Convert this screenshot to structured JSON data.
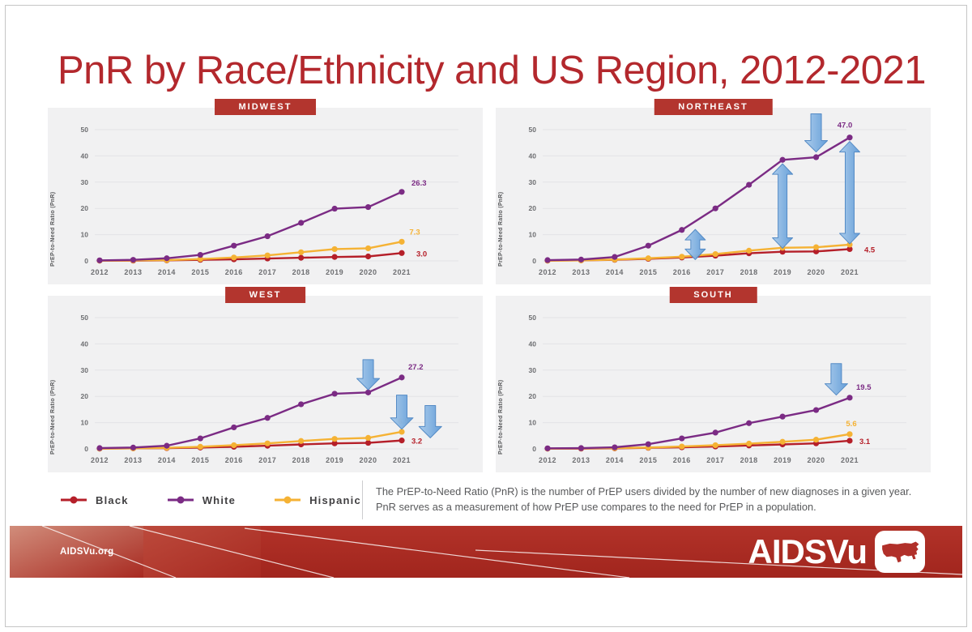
{
  "page": {
    "title": "PnR by Race/Ethnicity and US Region, 2012-2021"
  },
  "colors": {
    "accent_red": "#b3282d",
    "region_chip_bg": "#b3352e",
    "black_series": "#b51f29",
    "white_series": "#7b2b84",
    "hispanic_series": "#f5b234",
    "arrow_blue": "#6fa8dc",
    "panel_bg": "#f1f1f2",
    "footer_red": "#ab2a22"
  },
  "legend": {
    "items": [
      {
        "label": "Black",
        "color": "#b51f29"
      },
      {
        "label": "White",
        "color": "#7b2b84"
      },
      {
        "label": "Hispanic",
        "color": "#f5b234"
      }
    ]
  },
  "note": {
    "text": "The PrEP-to-Need Ratio (PnR) is the number of PrEP users divided by the number of new diagnoses in a given year. PnR serves as a measurement of how PrEP use compares to the need for PrEP in a population."
  },
  "footer": {
    "site": "AIDSVu.org",
    "brand": "AIDSVu",
    "logo_icon": "us-map-icon"
  },
  "chart_data": [
    {
      "type": "line",
      "region": "MIDWEST",
      "ylabel": "PrEP-to-Need Ratio (PnR)",
      "x": [
        2012,
        2013,
        2014,
        2015,
        2016,
        2017,
        2018,
        2019,
        2020,
        2021
      ],
      "ylim": [
        0,
        50
      ],
      "yticks": [
        0,
        10,
        20,
        30,
        40,
        50
      ],
      "grid": true,
      "series": [
        {
          "name": "Black",
          "color": "#b51f29",
          "values": [
            0.1,
            0.1,
            0.2,
            0.4,
            0.6,
            0.9,
            1.2,
            1.5,
            1.7,
            3.0
          ],
          "end_label": {
            "text": "3.0",
            "dx": 18,
            "dy": 4,
            "anchor": "start"
          }
        },
        {
          "name": "Hispanic",
          "color": "#f5b234",
          "values": [
            0.1,
            0.2,
            0.3,
            0.7,
            1.3,
            2.1,
            3.3,
            4.5,
            4.8,
            7.3
          ],
          "end_label": {
            "text": "7.3",
            "dx": 16,
            "dy": -9,
            "anchor": "middle"
          }
        },
        {
          "name": "White",
          "color": "#7b2b84",
          "values": [
            0.2,
            0.4,
            1.0,
            2.3,
            5.8,
            9.4,
            14.5,
            19.9,
            20.5,
            26.3
          ],
          "end_label": {
            "text": "26.3",
            "dx": 12,
            "dy": -8,
            "anchor": "start"
          }
        }
      ],
      "arrows": []
    },
    {
      "type": "line",
      "region": "NORTHEAST",
      "ylabel": "PrEP-to-Need Ratio (PnR)",
      "x": [
        2012,
        2013,
        2014,
        2015,
        2016,
        2017,
        2018,
        2019,
        2020,
        2021
      ],
      "ylim": [
        0,
        50
      ],
      "yticks": [
        0,
        10,
        20,
        30,
        40,
        50
      ],
      "grid": true,
      "series": [
        {
          "name": "Black",
          "color": "#b51f29",
          "values": [
            0.1,
            0.2,
            0.4,
            0.8,
            1.3,
            2.0,
            2.9,
            3.5,
            3.6,
            4.5
          ],
          "end_label": {
            "text": "4.5",
            "dx": 18,
            "dy": 4,
            "anchor": "start"
          }
        },
        {
          "name": "Hispanic",
          "color": "#f5b234",
          "values": [
            0.1,
            0.2,
            0.5,
            1.0,
            1.6,
            2.6,
            3.9,
            5.0,
            5.2,
            6.2
          ],
          "end_label": null
        },
        {
          "name": "White",
          "color": "#7b2b84",
          "values": [
            0.3,
            0.5,
            1.5,
            5.8,
            11.8,
            20.0,
            29.0,
            38.5,
            39.5,
            47.0
          ],
          "end_label": {
            "text": "47.0",
            "dx": -6,
            "dy": -12,
            "anchor": "middle"
          }
        }
      ],
      "arrows": [
        {
          "x": 2016.4,
          "from": 0.5,
          "to": 12,
          "dir": "both"
        },
        {
          "x": 2019,
          "from": 4.8,
          "to": 37,
          "dir": "both"
        },
        {
          "x": 2020,
          "from": 41.5,
          "to": 56,
          "dir": "down"
        },
        {
          "x": 2021,
          "from": 6.5,
          "to": 45.5,
          "dir": "both"
        }
      ]
    },
    {
      "type": "line",
      "region": "WEST",
      "ylabel": "PrEP-to-Need Ratio (PnR)",
      "x": [
        2012,
        2013,
        2014,
        2015,
        2016,
        2017,
        2018,
        2019,
        2020,
        2021
      ],
      "ylim": [
        0,
        50
      ],
      "yticks": [
        0,
        10,
        20,
        30,
        40,
        50
      ],
      "grid": true,
      "series": [
        {
          "name": "Black",
          "color": "#b51f29",
          "values": [
            0.1,
            0.2,
            0.3,
            0.5,
            0.8,
            1.2,
            1.7,
            2.1,
            2.3,
            3.2
          ],
          "end_label": {
            "text": "3.2",
            "dx": 12,
            "dy": 4,
            "anchor": "start"
          }
        },
        {
          "name": "Hispanic",
          "color": "#f5b234",
          "values": [
            0.1,
            0.2,
            0.4,
            0.8,
            1.4,
            2.1,
            3.0,
            3.8,
            4.2,
            6.5
          ],
          "end_label": {
            "text": "6.5",
            "dx": 2,
            "dy": -10,
            "anchor": "middle"
          }
        },
        {
          "name": "White",
          "color": "#7b2b84",
          "values": [
            0.3,
            0.5,
            1.2,
            4.0,
            8.2,
            11.8,
            17.0,
            21.0,
            21.5,
            27.2
          ],
          "end_label": {
            "text": "27.2",
            "dx": 8,
            "dy": -10,
            "anchor": "start"
          }
        }
      ],
      "arrows": [
        {
          "x": 2020,
          "from": 34,
          "to": 22.5,
          "dir": "down"
        },
        {
          "x": 2021,
          "from": 20.5,
          "to": 7.5,
          "dir": "down"
        },
        {
          "x": 2021.85,
          "from": 16.5,
          "to": 4.2,
          "dir": "down"
        }
      ]
    },
    {
      "type": "line",
      "region": "SOUTH",
      "ylabel": "PrEP-to-Need Ratio (PnR)",
      "x": [
        2012,
        2013,
        2014,
        2015,
        2016,
        2017,
        2018,
        2019,
        2020,
        2021
      ],
      "ylim": [
        0,
        50
      ],
      "yticks": [
        0,
        10,
        20,
        30,
        40,
        50
      ],
      "grid": true,
      "series": [
        {
          "name": "Black",
          "color": "#b51f29",
          "values": [
            0.1,
            0.1,
            0.2,
            0.4,
            0.6,
            0.9,
            1.3,
            1.7,
            2.1,
            3.1
          ],
          "end_label": {
            "text": "3.1",
            "dx": 12,
            "dy": 4,
            "anchor": "start"
          }
        },
        {
          "name": "Hispanic",
          "color": "#f5b234",
          "values": [
            0.1,
            0.2,
            0.3,
            0.5,
            0.9,
            1.4,
            2.0,
            2.7,
            3.5,
            5.6
          ],
          "end_label": {
            "text": "5.6",
            "dx": 2,
            "dy": -10,
            "anchor": "middle"
          }
        },
        {
          "name": "White",
          "color": "#7b2b84",
          "values": [
            0.2,
            0.3,
            0.6,
            1.8,
            4.0,
            6.2,
            9.8,
            12.3,
            14.8,
            19.5
          ],
          "end_label": {
            "text": "19.5",
            "dx": 8,
            "dy": -10,
            "anchor": "start"
          }
        }
      ],
      "arrows": [
        {
          "x": 2020.6,
          "from": 32.5,
          "to": 20.5,
          "dir": "down"
        }
      ]
    }
  ]
}
